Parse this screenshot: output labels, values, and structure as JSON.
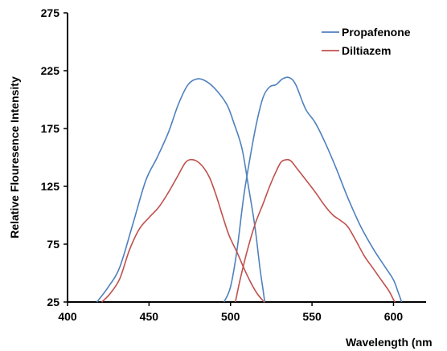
{
  "chart_data": {
    "type": "line",
    "xlabel": "Wavelength (nm",
    "ylabel": "Relative Flouresence Intensity",
    "xlim": [
      400,
      620
    ],
    "ylim": [
      25,
      275
    ],
    "xticks": [
      400,
      450,
      500,
      550,
      600
    ],
    "yticks": [
      25,
      75,
      125,
      175,
      225,
      275
    ],
    "grid": false,
    "legend": "top-right",
    "series": [
      {
        "name": "Propafenone",
        "color": "#4f81bd",
        "curves": [
          [
            [
              418,
              25
            ],
            [
              425,
              38
            ],
            [
              432,
              55
            ],
            [
              440,
              92
            ],
            [
              448,
              130
            ],
            [
              455,
              150
            ],
            [
              462,
              172
            ],
            [
              468,
              196
            ],
            [
              474,
              213
            ],
            [
              480,
              218
            ],
            [
              486,
              215
            ],
            [
              492,
              207
            ],
            [
              498,
              195
            ],
            [
              502,
              180
            ],
            [
              507,
              158
            ],
            [
              511,
              125
            ],
            [
              515,
              90
            ],
            [
              518,
              55
            ],
            [
              520,
              35
            ],
            [
              521,
              25
            ]
          ],
          [
            [
              496,
              25
            ],
            [
              500,
              38
            ],
            [
              504,
              70
            ],
            [
              508,
              115
            ],
            [
              512,
              150
            ],
            [
              516,
              180
            ],
            [
              520,
              202
            ],
            [
              524,
              211
            ],
            [
              528,
              213
            ],
            [
              532,
              218
            ],
            [
              536,
              219
            ],
            [
              540,
              213
            ],
            [
              546,
              192
            ],
            [
              552,
              180
            ],
            [
              558,
              163
            ],
            [
              565,
              140
            ],
            [
              572,
              115
            ],
            [
              580,
              90
            ],
            [
              588,
              70
            ],
            [
              595,
              55
            ],
            [
              600,
              44
            ],
            [
              603,
              33
            ],
            [
              605,
              25
            ]
          ]
        ]
      },
      {
        "name": "Diltiazem",
        "color": "#c0504d",
        "curves": [
          [
            [
              421,
              25
            ],
            [
              426,
              32
            ],
            [
              432,
              45
            ],
            [
              438,
              70
            ],
            [
              444,
              88
            ],
            [
              450,
              98
            ],
            [
              456,
              107
            ],
            [
              462,
              120
            ],
            [
              468,
              135
            ],
            [
              472,
              145
            ],
            [
              475,
              148
            ],
            [
              479,
              147
            ],
            [
              483,
              142
            ],
            [
              487,
              133
            ],
            [
              491,
              118
            ],
            [
              495,
              100
            ],
            [
              499,
              83
            ],
            [
              504,
              68
            ],
            [
              508,
              55
            ],
            [
              512,
              43
            ],
            [
              516,
              33
            ],
            [
              520,
              26
            ],
            [
              521,
              25
            ]
          ],
          [
            [
              503,
              25
            ],
            [
              506,
              45
            ],
            [
              510,
              68
            ],
            [
              515,
              92
            ],
            [
              520,
              110
            ],
            [
              524,
              125
            ],
            [
              528,
              138
            ],
            [
              531,
              146
            ],
            [
              534,
              148
            ],
            [
              537,
              147
            ],
            [
              541,
              140
            ],
            [
              546,
              131
            ],
            [
              552,
              120
            ],
            [
              558,
              108
            ],
            [
              563,
              100
            ],
            [
              568,
              95
            ],
            [
              572,
              90
            ],
            [
              577,
              78
            ],
            [
              582,
              65
            ],
            [
              587,
              55
            ],
            [
              592,
              45
            ],
            [
              597,
              35
            ],
            [
              600,
              27
            ],
            [
              601,
              25
            ]
          ]
        ]
      }
    ]
  }
}
